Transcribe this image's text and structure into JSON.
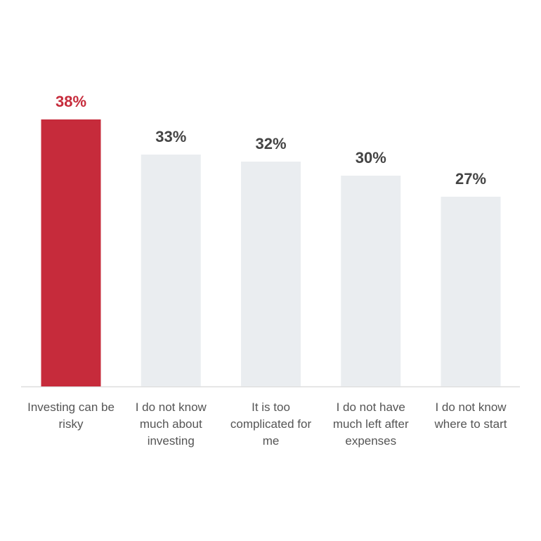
{
  "chart_data": {
    "type": "bar",
    "categories": [
      "Investing can be risky",
      "I do not know much about investing",
      "It is too complicated for me",
      "I do not have much left after expenses",
      "I do not know where to start"
    ],
    "values": [
      38,
      33,
      32,
      30,
      27
    ],
    "value_labels": [
      "38%",
      "33%",
      "32%",
      "30%",
      "27%"
    ],
    "colors": [
      "#c62b3b",
      "#eaedf0",
      "#eaedf0",
      "#eaedf0",
      "#eaedf0"
    ],
    "label_colors": [
      "#c62b3b",
      "#444444",
      "#444444",
      "#444444",
      "#444444"
    ]
  }
}
